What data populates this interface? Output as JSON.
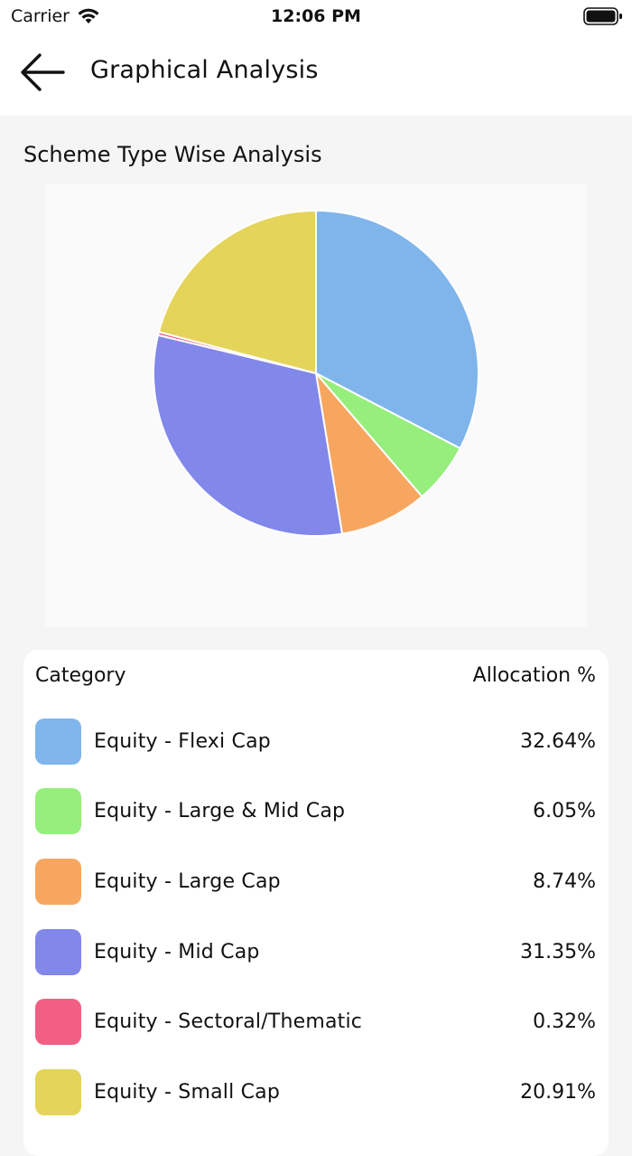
{
  "status_bar": {
    "carrier": "Carrier",
    "time": "12:06 PM"
  },
  "nav": {
    "title": "Graphical Analysis"
  },
  "section": {
    "title": "Scheme Type Wise Analysis"
  },
  "table": {
    "col_category": "Category",
    "col_allocation": "Allocation %",
    "rows": [
      {
        "label": "Equity - Flexi Cap",
        "value": "32.64%"
      },
      {
        "label": "Equity - Large & Mid Cap",
        "value": "6.05%"
      },
      {
        "label": "Equity - Large Cap",
        "value": "8.74%"
      },
      {
        "label": "Equity - Mid Cap",
        "value": "31.35%"
      },
      {
        "label": "Equity - Sectoral/Thematic",
        "value": "0.32%"
      },
      {
        "label": "Equity - Small Cap",
        "value": "20.91%"
      }
    ]
  },
  "chart_data": {
    "type": "pie",
    "categories": [
      "Equity - Flexi Cap",
      "Equity - Large & Mid Cap",
      "Equity - Large Cap",
      "Equity - Mid Cap",
      "Equity - Sectoral/Thematic",
      "Equity - Small Cap"
    ],
    "values": [
      32.64,
      6.05,
      8.74,
      31.35,
      0.32,
      20.91
    ],
    "colors": [
      "#7fb5ea",
      "#96ee7c",
      "#f7a660",
      "#8287ea",
      "#f25f85",
      "#e4d45a"
    ],
    "start_angle": "12 o'clock",
    "direction": "clockwise"
  }
}
